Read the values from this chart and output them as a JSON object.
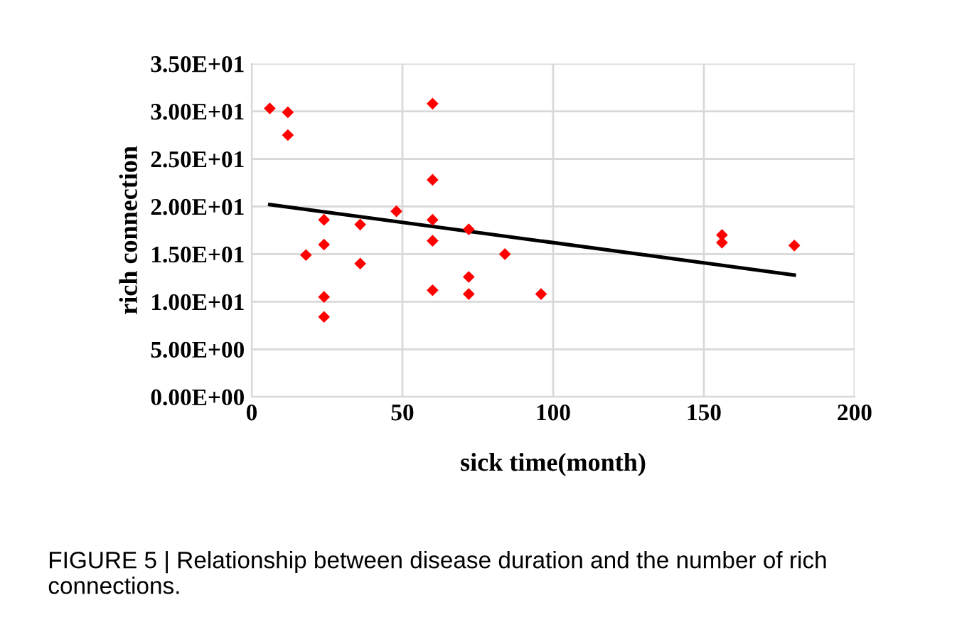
{
  "chart_data": {
    "type": "scatter",
    "xlabel": "sick time(month)",
    "ylabel": "rich connection",
    "marker": "diamond",
    "grid": true,
    "xlim": [
      0,
      200
    ],
    "xticks": [
      0,
      50,
      100,
      150,
      200
    ],
    "ylim": [
      0,
      35
    ],
    "yticks": [
      {
        "value": 0,
        "label": "0.00E+00"
      },
      {
        "value": 5,
        "label": "5.00E+00"
      },
      {
        "value": 10,
        "label": "1.00E+01"
      },
      {
        "value": 15,
        "label": "1.50E+01"
      },
      {
        "value": 20,
        "label": "2.00E+01"
      },
      {
        "value": 25,
        "label": "2.50E+01"
      },
      {
        "value": 30,
        "label": "3.00E+01"
      },
      {
        "value": 35,
        "label": "3.50E+01"
      }
    ],
    "series": [
      {
        "color": "#ff0000",
        "x": [
          6,
          12,
          12,
          60,
          60,
          24,
          36,
          48,
          60,
          18,
          24,
          60,
          72,
          36,
          84,
          24,
          24,
          60,
          72,
          72,
          96,
          156,
          156,
          180
        ],
        "values": [
          30.3,
          29.9,
          27.5,
          30.8,
          22.8,
          18.6,
          18.1,
          19.5,
          18.6,
          14.9,
          16.0,
          16.4,
          17.6,
          14.0,
          15.0,
          10.5,
          8.4,
          11.2,
          12.6,
          10.8,
          10.8,
          17.0,
          16.2,
          15.9
        ]
      },
      {
        "type": "line",
        "color": "#000000",
        "marker": "none",
        "x": [
          6,
          180
        ],
        "values": [
          20.2,
          12.8
        ]
      }
    ],
    "annotations": [
      "FIGURE 5 | Relationship between disease duration and the number of rich connections."
    ]
  }
}
